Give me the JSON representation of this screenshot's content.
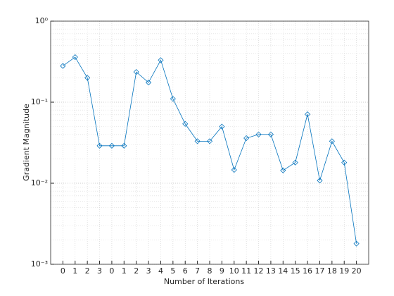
{
  "chart_data": {
    "type": "line",
    "x_label": "Number of Iterations",
    "y_label": "Gradient Magnitude",
    "categories": [
      "0",
      "1",
      "2",
      "3",
      "0",
      "1",
      "2",
      "3",
      "4",
      "5",
      "6",
      "7",
      "8",
      "9",
      "10",
      "11",
      "12",
      "13",
      "14",
      "15",
      "16",
      "17",
      "18",
      "19",
      "20"
    ],
    "series": [
      {
        "color": "#0072bd",
        "values": [
          0.28,
          0.36,
          0.2,
          0.029,
          0.029,
          0.029,
          0.236,
          0.175,
          0.33,
          0.11,
          0.054,
          0.033,
          0.033,
          0.05,
          0.0146,
          0.036,
          0.04,
          0.04,
          0.0144,
          0.018,
          0.071,
          0.0108,
          0.033,
          0.018,
          0.0018
        ]
      }
    ],
    "y_scale": "log",
    "ylim": [
      0.001,
      1
    ],
    "yticks": [
      {
        "value": 0.001,
        "label": "10⁻³"
      },
      {
        "value": 0.01,
        "label": "10⁻²"
      },
      {
        "value": 0.1,
        "label": "10⁻¹"
      },
      {
        "value": 1,
        "label": "10⁰"
      }
    ],
    "grid": true
  }
}
